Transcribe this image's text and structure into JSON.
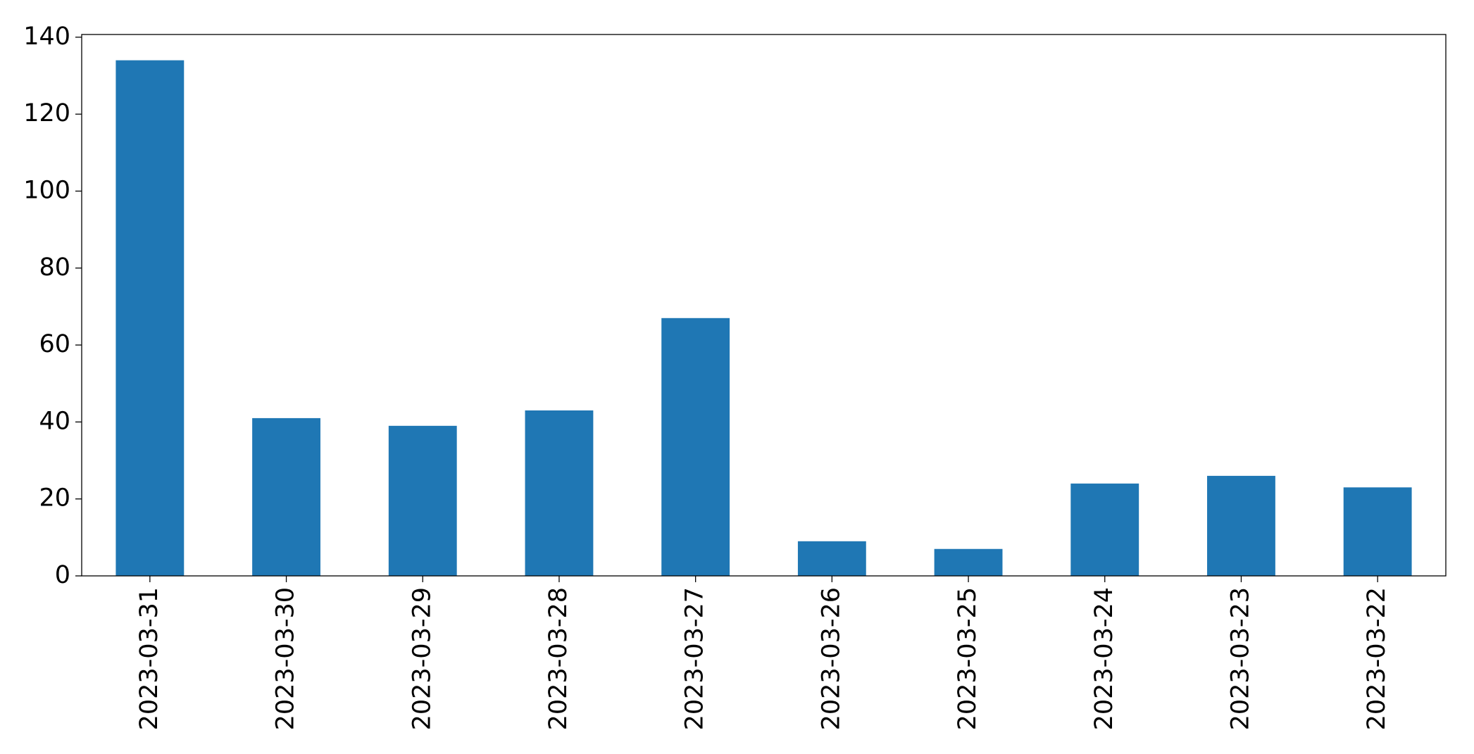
{
  "chart_data": {
    "type": "bar",
    "categories": [
      "2023-03-31",
      "2023-03-30",
      "2023-03-29",
      "2023-03-28",
      "2023-03-27",
      "2023-03-26",
      "2023-03-25",
      "2023-03-24",
      "2023-03-23",
      "2023-03-22"
    ],
    "values": [
      134,
      41,
      39,
      43,
      67,
      9,
      7,
      24,
      26,
      23
    ],
    "color": "#1f77b4",
    "ylim": [
      0,
      140.7
    ],
    "yticks": [
      0,
      20,
      40,
      60,
      80,
      100,
      120,
      140
    ],
    "grid": false
  }
}
